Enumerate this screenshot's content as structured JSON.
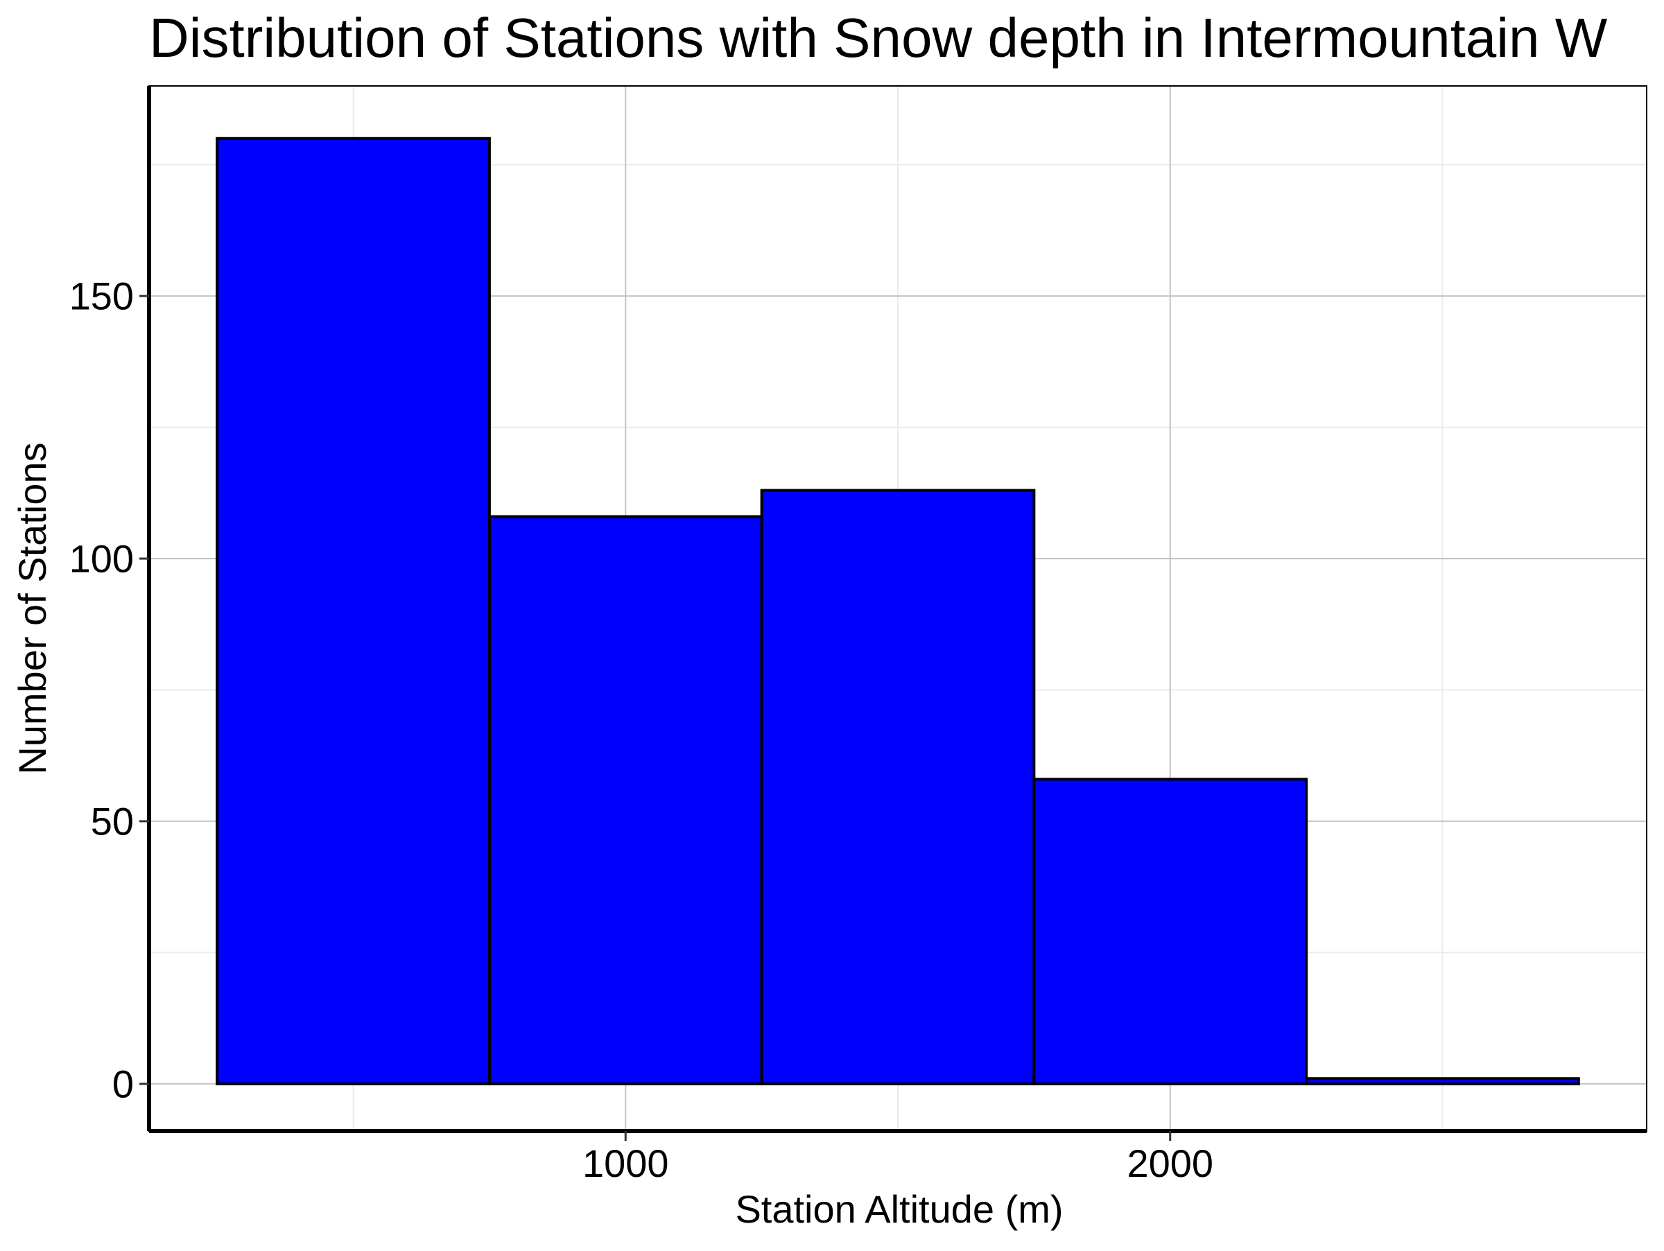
{
  "chart_data": {
    "type": "bar",
    "title": "Distribution of Stations with Snow depth in Intermountain W",
    "xlabel": "Station Altitude (m)",
    "ylabel": "Number of Stations",
    "bins": [
      {
        "x0": 250,
        "x1": 750,
        "count": 180
      },
      {
        "x0": 750,
        "x1": 1250,
        "count": 108
      },
      {
        "x0": 1250,
        "x1": 1750,
        "count": 113
      },
      {
        "x0": 1750,
        "x1": 2250,
        "count": 58
      },
      {
        "x0": 2250,
        "x1": 2750,
        "count": 1
      }
    ],
    "xlim": [
      125,
      2875
    ],
    "ylim": [
      -9,
      190
    ],
    "xticks": [
      1000,
      2000
    ],
    "xminor": [
      500,
      1500,
      2500
    ],
    "yticks": [
      0,
      50,
      100,
      150
    ],
    "yminor": [
      25,
      75,
      125,
      175
    ],
    "grid": true,
    "bar_color": "#0000ff",
    "edge_color": "#000000"
  }
}
